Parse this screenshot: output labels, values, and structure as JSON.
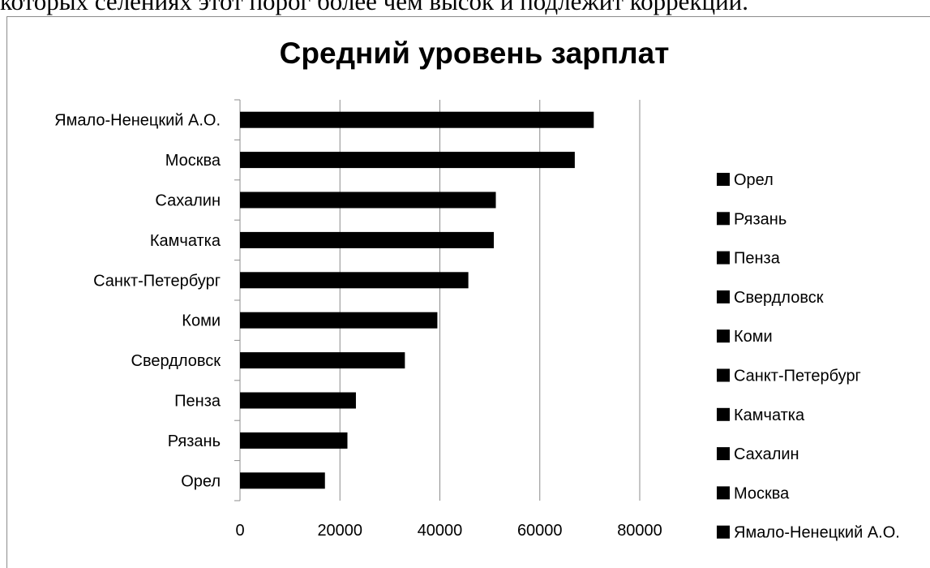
{
  "page": {
    "top_text": "которых селениях этот порог более чем высок и подлежит коррекции."
  },
  "chart_data": {
    "type": "bar",
    "orientation": "horizontal",
    "title": "Средний уровень зарплат",
    "xlabel": "",
    "ylabel": "",
    "categories": [
      "Орел",
      "Рязань",
      "Пенза",
      "Свердловск",
      "Коми",
      "Санкт-Петербург",
      "Камчатка",
      "Сахалин",
      "Москва",
      "Ямало-Ненецкий А.О."
    ],
    "values": [
      17000,
      21500,
      23200,
      33000,
      39500,
      45700,
      50800,
      51200,
      67000,
      70800
    ],
    "xlim": [
      0,
      80000
    ],
    "xticks": [
      "0",
      "20000",
      "40000",
      "60000",
      "80000"
    ],
    "xtick_values": [
      0,
      20000,
      40000,
      60000,
      80000
    ],
    "grid": "vertical",
    "legend": {
      "placement": "right",
      "entries": [
        "Орел",
        "Рязань",
        "Пенза",
        "Свердловск",
        "Коми",
        "Санкт-Петербург",
        "Камчатка",
        "Сахалин",
        "Москва",
        "Ямало-Ненецкий А.О."
      ]
    },
    "colors": {
      "bar": "#000000",
      "grid": "#8c8c8c",
      "axis": "#8c8c8c",
      "text": "#000000"
    }
  }
}
